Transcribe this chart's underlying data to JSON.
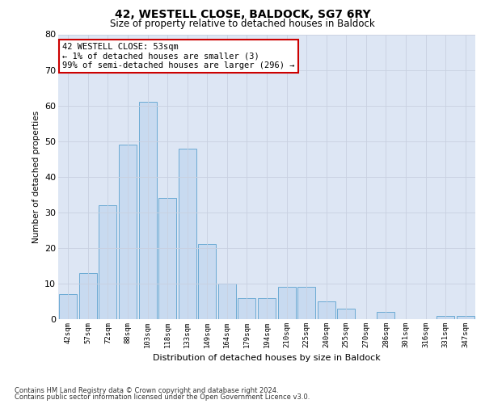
{
  "title": "42, WESTELL CLOSE, BALDOCK, SG7 6RY",
  "subtitle": "Size of property relative to detached houses in Baldock",
  "xlabel": "Distribution of detached houses by size in Baldock",
  "ylabel": "Number of detached properties",
  "categories": [
    "42sqm",
    "57sqm",
    "72sqm",
    "88sqm",
    "103sqm",
    "118sqm",
    "133sqm",
    "149sqm",
    "164sqm",
    "179sqm",
    "194sqm",
    "210sqm",
    "225sqm",
    "240sqm",
    "255sqm",
    "270sqm",
    "286sqm",
    "301sqm",
    "316sqm",
    "331sqm",
    "347sqm"
  ],
  "values": [
    7,
    13,
    32,
    49,
    61,
    34,
    48,
    21,
    10,
    6,
    6,
    9,
    9,
    5,
    3,
    0,
    2,
    0,
    0,
    1,
    1
  ],
  "bar_color": "#c8daf0",
  "bar_edge_color": "#6baad4",
  "annotation_line1": "42 WESTELL CLOSE: 53sqm",
  "annotation_line2": "← 1% of detached houses are smaller (3)",
  "annotation_line3": "99% of semi-detached houses are larger (296) →",
  "annotation_box_color": "#ffffff",
  "annotation_box_edge_color": "#cc0000",
  "ylim": [
    0,
    80
  ],
  "yticks": [
    0,
    10,
    20,
    30,
    40,
    50,
    60,
    70,
    80
  ],
  "grid_color": "#c8d0e0",
  "background_color": "#dde6f4",
  "footer_line1": "Contains HM Land Registry data © Crown copyright and database right 2024.",
  "footer_line2": "Contains public sector information licensed under the Open Government Licence v3.0."
}
